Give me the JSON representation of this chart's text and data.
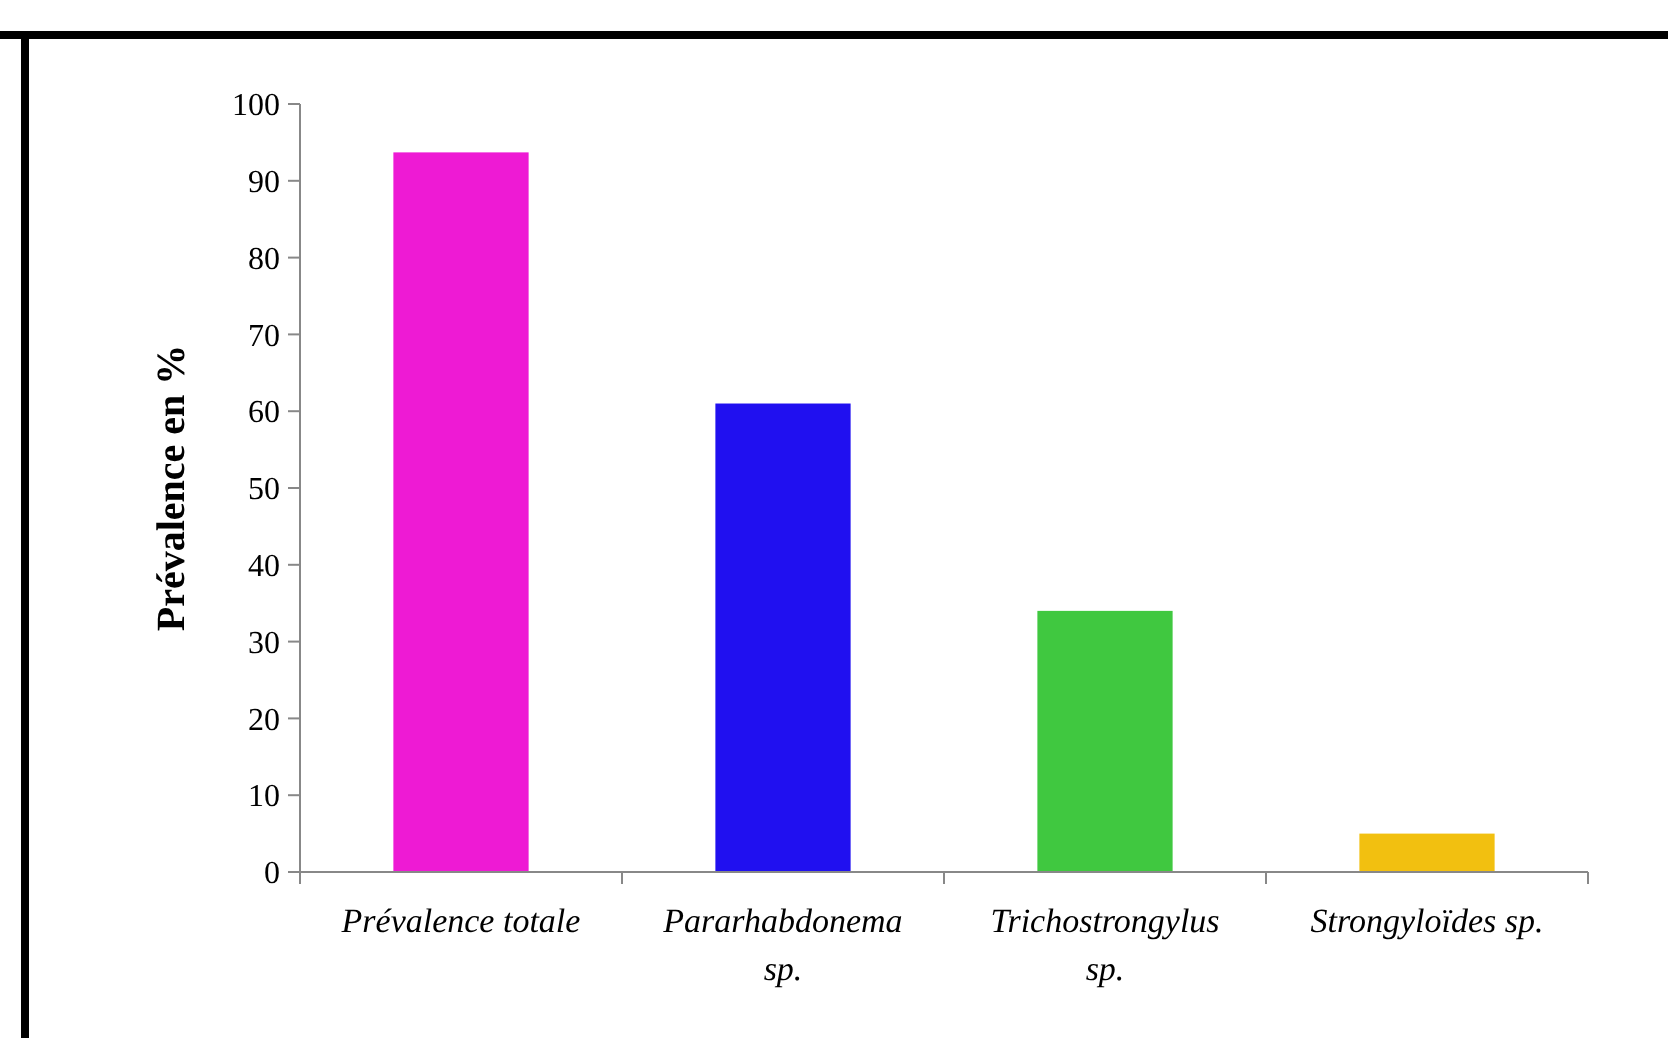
{
  "chart_data": {
    "type": "bar",
    "ylabel": "Prévalence en %",
    "categories": [
      "Prévalence totale",
      "Pararhabdonema sp.",
      "Trichostrongylus sp.",
      "Strongyloïdes sp."
    ],
    "values": [
      93.7,
      61,
      34,
      5
    ],
    "colors": [
      "#ee1ad4",
      "#2010f0",
      "#40c840",
      "#f2c010"
    ],
    "ylim": [
      0,
      100
    ],
    "yticks": [
      0,
      10,
      20,
      30,
      40,
      50,
      60,
      70,
      80,
      90,
      100
    ],
    "grid": false
  }
}
